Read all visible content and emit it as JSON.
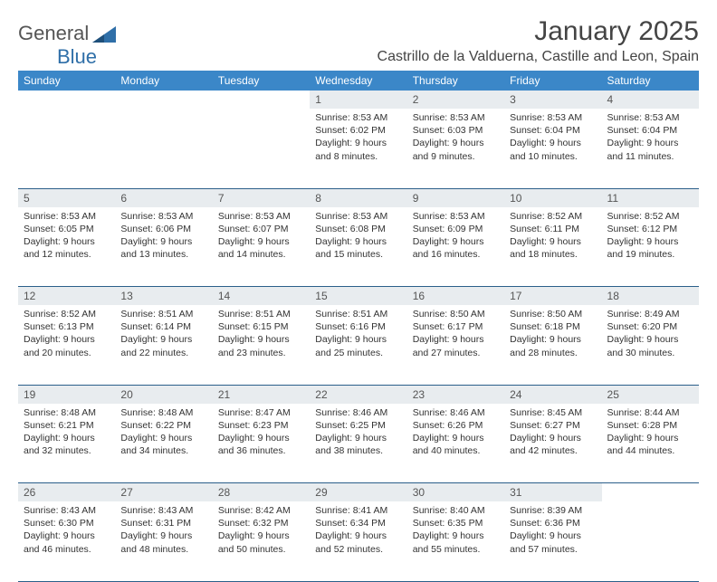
{
  "logo": {
    "general": "General",
    "blue": "Blue"
  },
  "title": "January 2025",
  "location": "Castrillo de la Valduerna, Castille and Leon, Spain",
  "colors": {
    "header_bg": "#3b87c8",
    "header_text": "#ffffff",
    "daynum_bg": "#e8ecef",
    "cell_border": "#2b5f8a",
    "text": "#333333",
    "logo_blue": "#2f6fa8"
  },
  "weekdays": [
    "Sunday",
    "Monday",
    "Tuesday",
    "Wednesday",
    "Thursday",
    "Friday",
    "Saturday"
  ],
  "weeks": [
    [
      null,
      null,
      null,
      {
        "n": "1",
        "sunrise": "8:53 AM",
        "sunset": "6:02 PM",
        "dl1": "Daylight: 9 hours",
        "dl2": "and 8 minutes."
      },
      {
        "n": "2",
        "sunrise": "8:53 AM",
        "sunset": "6:03 PM",
        "dl1": "Daylight: 9 hours",
        "dl2": "and 9 minutes."
      },
      {
        "n": "3",
        "sunrise": "8:53 AM",
        "sunset": "6:04 PM",
        "dl1": "Daylight: 9 hours",
        "dl2": "and 10 minutes."
      },
      {
        "n": "4",
        "sunrise": "8:53 AM",
        "sunset": "6:04 PM",
        "dl1": "Daylight: 9 hours",
        "dl2": "and 11 minutes."
      }
    ],
    [
      {
        "n": "5",
        "sunrise": "8:53 AM",
        "sunset": "6:05 PM",
        "dl1": "Daylight: 9 hours",
        "dl2": "and 12 minutes."
      },
      {
        "n": "6",
        "sunrise": "8:53 AM",
        "sunset": "6:06 PM",
        "dl1": "Daylight: 9 hours",
        "dl2": "and 13 minutes."
      },
      {
        "n": "7",
        "sunrise": "8:53 AM",
        "sunset": "6:07 PM",
        "dl1": "Daylight: 9 hours",
        "dl2": "and 14 minutes."
      },
      {
        "n": "8",
        "sunrise": "8:53 AM",
        "sunset": "6:08 PM",
        "dl1": "Daylight: 9 hours",
        "dl2": "and 15 minutes."
      },
      {
        "n": "9",
        "sunrise": "8:53 AM",
        "sunset": "6:09 PM",
        "dl1": "Daylight: 9 hours",
        "dl2": "and 16 minutes."
      },
      {
        "n": "10",
        "sunrise": "8:52 AM",
        "sunset": "6:11 PM",
        "dl1": "Daylight: 9 hours",
        "dl2": "and 18 minutes."
      },
      {
        "n": "11",
        "sunrise": "8:52 AM",
        "sunset": "6:12 PM",
        "dl1": "Daylight: 9 hours",
        "dl2": "and 19 minutes."
      }
    ],
    [
      {
        "n": "12",
        "sunrise": "8:52 AM",
        "sunset": "6:13 PM",
        "dl1": "Daylight: 9 hours",
        "dl2": "and 20 minutes."
      },
      {
        "n": "13",
        "sunrise": "8:51 AM",
        "sunset": "6:14 PM",
        "dl1": "Daylight: 9 hours",
        "dl2": "and 22 minutes."
      },
      {
        "n": "14",
        "sunrise": "8:51 AM",
        "sunset": "6:15 PM",
        "dl1": "Daylight: 9 hours",
        "dl2": "and 23 minutes."
      },
      {
        "n": "15",
        "sunrise": "8:51 AM",
        "sunset": "6:16 PM",
        "dl1": "Daylight: 9 hours",
        "dl2": "and 25 minutes."
      },
      {
        "n": "16",
        "sunrise": "8:50 AM",
        "sunset": "6:17 PM",
        "dl1": "Daylight: 9 hours",
        "dl2": "and 27 minutes."
      },
      {
        "n": "17",
        "sunrise": "8:50 AM",
        "sunset": "6:18 PM",
        "dl1": "Daylight: 9 hours",
        "dl2": "and 28 minutes."
      },
      {
        "n": "18",
        "sunrise": "8:49 AM",
        "sunset": "6:20 PM",
        "dl1": "Daylight: 9 hours",
        "dl2": "and 30 minutes."
      }
    ],
    [
      {
        "n": "19",
        "sunrise": "8:48 AM",
        "sunset": "6:21 PM",
        "dl1": "Daylight: 9 hours",
        "dl2": "and 32 minutes."
      },
      {
        "n": "20",
        "sunrise": "8:48 AM",
        "sunset": "6:22 PM",
        "dl1": "Daylight: 9 hours",
        "dl2": "and 34 minutes."
      },
      {
        "n": "21",
        "sunrise": "8:47 AM",
        "sunset": "6:23 PM",
        "dl1": "Daylight: 9 hours",
        "dl2": "and 36 minutes."
      },
      {
        "n": "22",
        "sunrise": "8:46 AM",
        "sunset": "6:25 PM",
        "dl1": "Daylight: 9 hours",
        "dl2": "and 38 minutes."
      },
      {
        "n": "23",
        "sunrise": "8:46 AM",
        "sunset": "6:26 PM",
        "dl1": "Daylight: 9 hours",
        "dl2": "and 40 minutes."
      },
      {
        "n": "24",
        "sunrise": "8:45 AM",
        "sunset": "6:27 PM",
        "dl1": "Daylight: 9 hours",
        "dl2": "and 42 minutes."
      },
      {
        "n": "25",
        "sunrise": "8:44 AM",
        "sunset": "6:28 PM",
        "dl1": "Daylight: 9 hours",
        "dl2": "and 44 minutes."
      }
    ],
    [
      {
        "n": "26",
        "sunrise": "8:43 AM",
        "sunset": "6:30 PM",
        "dl1": "Daylight: 9 hours",
        "dl2": "and 46 minutes."
      },
      {
        "n": "27",
        "sunrise": "8:43 AM",
        "sunset": "6:31 PM",
        "dl1": "Daylight: 9 hours",
        "dl2": "and 48 minutes."
      },
      {
        "n": "28",
        "sunrise": "8:42 AM",
        "sunset": "6:32 PM",
        "dl1": "Daylight: 9 hours",
        "dl2": "and 50 minutes."
      },
      {
        "n": "29",
        "sunrise": "8:41 AM",
        "sunset": "6:34 PM",
        "dl1": "Daylight: 9 hours",
        "dl2": "and 52 minutes."
      },
      {
        "n": "30",
        "sunrise": "8:40 AM",
        "sunset": "6:35 PM",
        "dl1": "Daylight: 9 hours",
        "dl2": "and 55 minutes."
      },
      {
        "n": "31",
        "sunrise": "8:39 AM",
        "sunset": "6:36 PM",
        "dl1": "Daylight: 9 hours",
        "dl2": "and 57 minutes."
      },
      null
    ]
  ],
  "labels": {
    "sunrise": "Sunrise:",
    "sunset": "Sunset:"
  }
}
